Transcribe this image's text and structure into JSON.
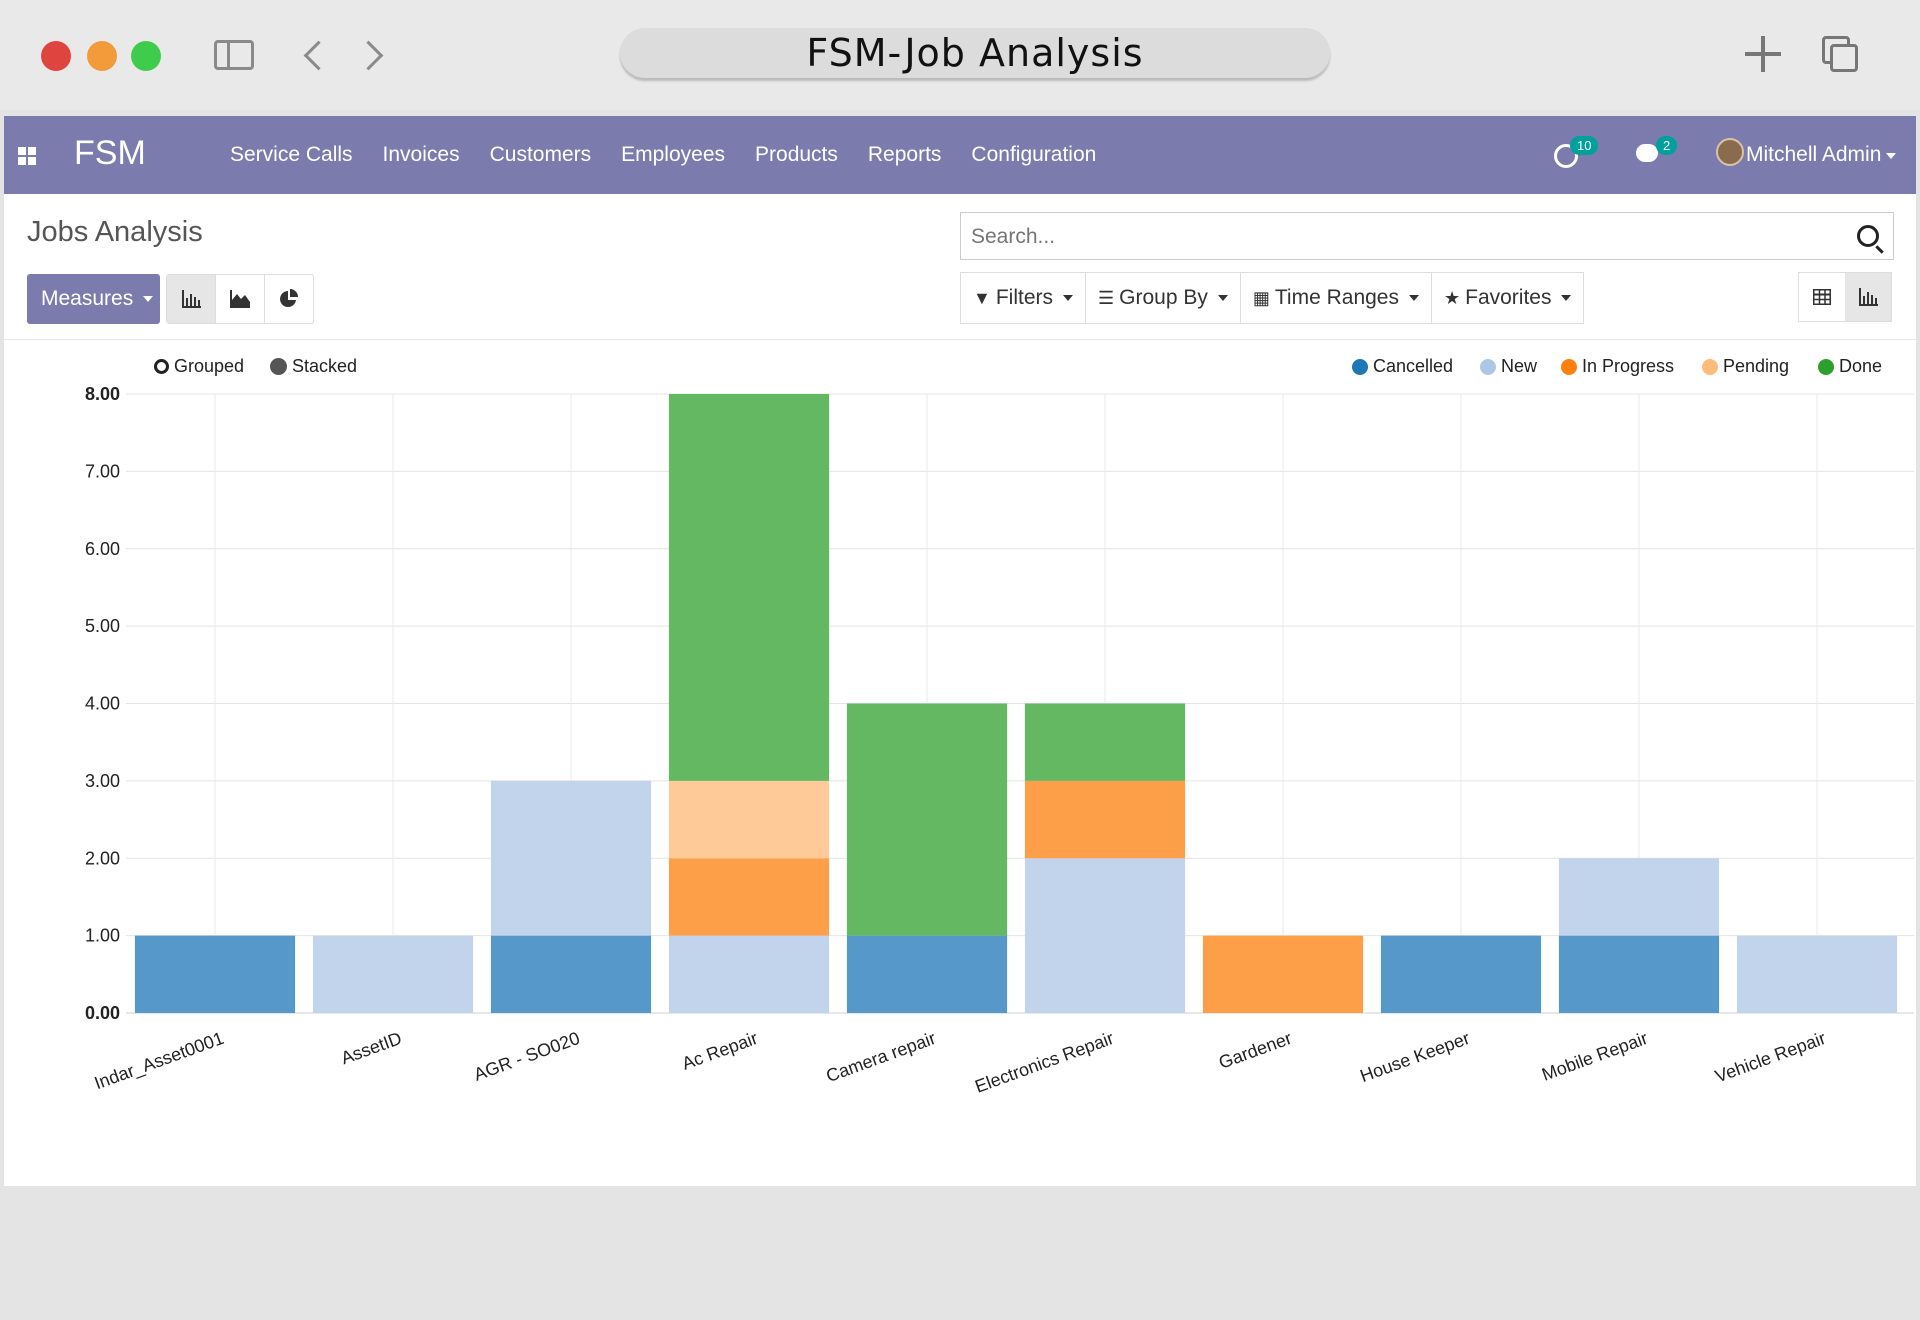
{
  "window": {
    "title": "FSM-Job Analysis"
  },
  "navbar": {
    "brand": "FSM",
    "menu": [
      "Service Calls",
      "Invoices",
      "Customers",
      "Employees",
      "Products",
      "Reports",
      "Configuration"
    ],
    "activity_count": "10",
    "message_count": "2",
    "user": "Mitchell Admin"
  },
  "page": {
    "title": "Jobs Analysis",
    "search_placeholder": "Search...",
    "measures_label": "Measures",
    "filters_label": "Filters",
    "group_by_label": "Group By",
    "time_ranges_label": "Time Ranges",
    "favorites_label": "Favorites",
    "grouped_label": "Grouped",
    "stacked_label": "Stacked"
  },
  "colors": {
    "Cancelled": "#5598c9",
    "New": "#c2d4ec",
    "In Progress": "#fd9e48",
    "Pending": "#fecb98",
    "Done": "#64b862"
  },
  "chart_data": {
    "type": "bar",
    "stacked": true,
    "title": "",
    "xlabel": "",
    "ylabel": "",
    "ylim": [
      0,
      8
    ],
    "y_ticks": [
      "0.00",
      "1.00",
      "2.00",
      "3.00",
      "4.00",
      "5.00",
      "6.00",
      "7.00",
      "8.00"
    ],
    "grid": true,
    "legend_position": "top-right",
    "categories": [
      "Indar_Asset0001",
      "AssetID",
      "AGR - SO020",
      "Ac Repair",
      "Camera repair",
      "Electronics Repair",
      "Gardener",
      "House Keeper",
      "Mobile Repair",
      "Vehicle Repair"
    ],
    "series": [
      {
        "name": "Cancelled",
        "values": [
          1,
          0,
          1,
          0,
          1,
          0,
          0,
          1,
          1,
          0
        ]
      },
      {
        "name": "New",
        "values": [
          0,
          1,
          2,
          1,
          0,
          2,
          0,
          0,
          1,
          1
        ]
      },
      {
        "name": "In Progress",
        "values": [
          0,
          0,
          0,
          1,
          0,
          1,
          1,
          0,
          0,
          0
        ]
      },
      {
        "name": "Pending",
        "values": [
          0,
          0,
          0,
          1,
          0,
          0,
          0,
          0,
          0,
          0
        ]
      },
      {
        "name": "Done",
        "values": [
          0,
          0,
          0,
          5,
          3,
          1,
          0,
          0,
          0,
          0
        ]
      }
    ]
  }
}
